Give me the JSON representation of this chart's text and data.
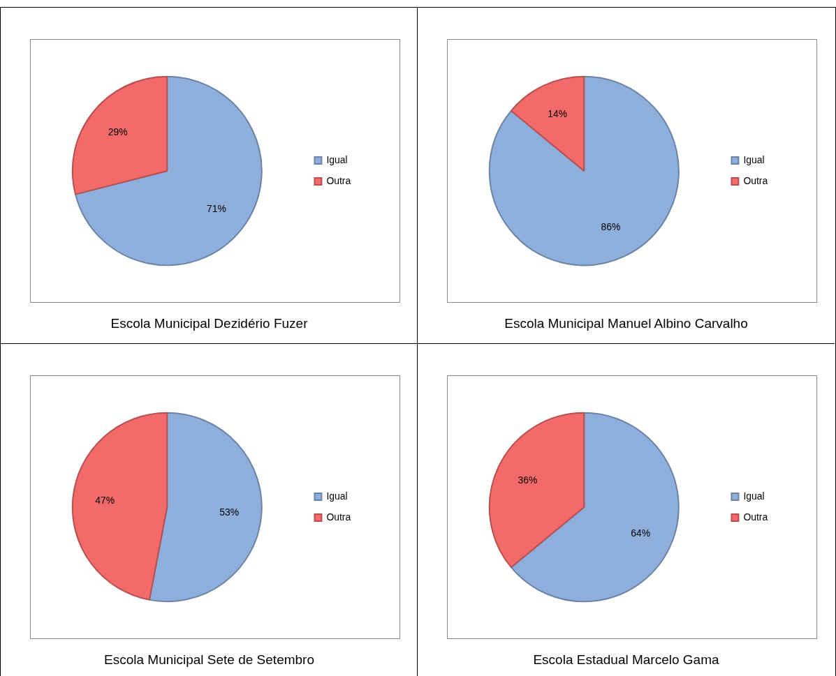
{
  "chart_data": [
    {
      "type": "pie",
      "title": "Escola Municipal Dezidério Fuzer",
      "categories": [
        "Igual",
        "Outra"
      ],
      "values": [
        71,
        29
      ],
      "colors": [
        "#8eaedb",
        "#f26a6a"
      ],
      "value_labels": [
        "71%",
        "29%"
      ],
      "legend": "right"
    },
    {
      "type": "pie",
      "title": "Escola Municipal Manuel Albino Carvalho",
      "categories": [
        "Igual",
        "Outra"
      ],
      "values": [
        86,
        14
      ],
      "colors": [
        "#8eaedb",
        "#f26a6a"
      ],
      "value_labels": [
        "86%",
        "14%"
      ],
      "legend": "right"
    },
    {
      "type": "pie",
      "title": "Escola Municipal Sete de Setembro",
      "categories": [
        "Igual",
        "Outra"
      ],
      "values": [
        53,
        47
      ],
      "colors": [
        "#8eaedb",
        "#f26a6a"
      ],
      "value_labels": [
        "53%",
        "47%"
      ],
      "legend": "right"
    },
    {
      "type": "pie",
      "title": "Escola Estadual Marcelo Gama",
      "categories": [
        "Igual",
        "Outra"
      ],
      "values": [
        64,
        36
      ],
      "colors": [
        "#8eaedb",
        "#f26a6a"
      ],
      "value_labels": [
        "64%",
        "36%"
      ],
      "legend": "right"
    }
  ]
}
